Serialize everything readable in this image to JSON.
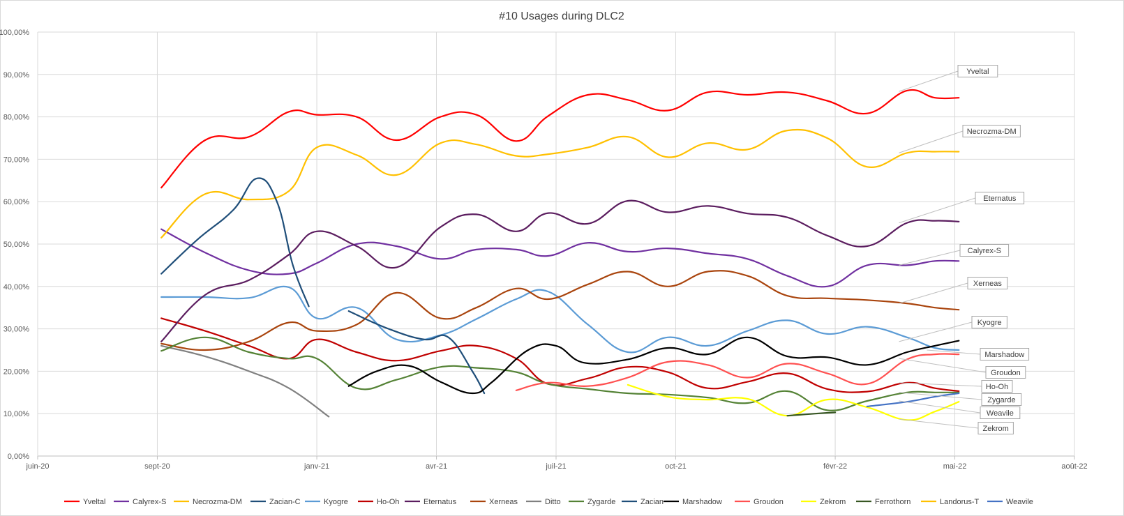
{
  "chart_data": {
    "type": "line",
    "title": "#10 Usages during DLC2",
    "xlabel": "",
    "ylabel": "",
    "ylim": [
      0,
      100
    ],
    "x_ticks": [
      "juin-20",
      "sept-20",
      "janv-21",
      "avr-21",
      "juil-21",
      "oct-21",
      "févr-22",
      "mai-22",
      "août-22"
    ],
    "x_tick_pos": [
      0,
      3,
      7,
      10,
      13,
      16,
      20,
      23,
      26
    ],
    "y_ticks": [
      "0,00%",
      "10,00%",
      "20,00%",
      "30,00%",
      "40,00%",
      "50,00%",
      "60,00%",
      "70,00%",
      "80,00%",
      "90,00%",
      "100,00%"
    ],
    "xlim": [
      0,
      26
    ],
    "grid": true,
    "legend_position": "bottom",
    "series": [
      {
        "name": "Yveltal",
        "color": "#ff0000",
        "x": [
          3.1,
          4.2,
          5.3,
          6.3,
          7.0,
          8.0,
          9.0,
          10.1,
          11.0,
          12.0,
          12.8,
          13.8,
          14.8,
          15.8,
          16.8,
          17.8,
          18.8,
          19.8,
          20.8,
          21.8,
          22.5,
          23.1
        ],
        "values": [
          63.3,
          74.5,
          75.3,
          81.2,
          80.5,
          80.0,
          74.5,
          80.0,
          80.5,
          74.3,
          80.2,
          85.2,
          84.0,
          81.5,
          85.8,
          85.2,
          85.8,
          83.8,
          80.8,
          86.2,
          84.5,
          84.5
        ]
      },
      {
        "name": "Calyrex-S",
        "color": "#7030a0",
        "x": [
          3.1,
          4.2,
          5.3,
          6.3,
          7.0,
          8.0,
          9.0,
          10.1,
          11.0,
          12.0,
          12.8,
          13.8,
          14.8,
          15.8,
          16.8,
          17.8,
          18.8,
          19.8,
          20.8,
          21.8,
          22.5,
          23.1
        ],
        "values": [
          53.5,
          48.0,
          43.8,
          43.0,
          45.5,
          50.0,
          49.5,
          46.5,
          48.7,
          48.7,
          47.2,
          50.3,
          48.2,
          49.0,
          47.8,
          46.5,
          42.5,
          40.0,
          45.0,
          45.0,
          46.0,
          46.0
        ]
      },
      {
        "name": "Necrozma-DM",
        "color": "#ffc000",
        "x": [
          3.1,
          4.2,
          5.3,
          6.3,
          7.0,
          8.0,
          9.0,
          10.1,
          11.0,
          12.0,
          12.8,
          13.8,
          14.8,
          15.8,
          16.8,
          17.8,
          18.8,
          19.8,
          20.8,
          21.8,
          22.5,
          23.1
        ],
        "values": [
          51.5,
          61.8,
          60.5,
          62.5,
          72.8,
          71.0,
          66.3,
          73.8,
          73.5,
          70.8,
          71.2,
          72.8,
          75.3,
          70.5,
          73.8,
          72.3,
          76.8,
          75.0,
          68.2,
          71.5,
          71.8,
          71.8
        ]
      },
      {
        "name": "Zacian-C",
        "color": "#1f4e79",
        "x": [
          3.1,
          4.0,
          4.9,
          5.5,
          6.0,
          6.4,
          6.8
        ],
        "values": [
          43.0,
          51.0,
          58.0,
          65.5,
          60.0,
          45.0,
          35.3
        ]
      },
      {
        "name": "Kyogre",
        "color": "#5b9bd5",
        "x": [
          3.1,
          4.2,
          5.3,
          6.3,
          7.0,
          8.0,
          9.0,
          10.1,
          11.0,
          12.0,
          12.8,
          13.8,
          14.8,
          15.8,
          16.8,
          17.8,
          18.8,
          19.8,
          20.8,
          21.8,
          22.5,
          23.1
        ],
        "values": [
          37.5,
          37.5,
          37.3,
          39.8,
          32.5,
          35.0,
          27.5,
          28.5,
          32.3,
          37.0,
          38.8,
          31.0,
          24.5,
          28.0,
          26.0,
          29.5,
          32.0,
          28.8,
          30.5,
          28.0,
          25.5,
          25.0
        ]
      },
      {
        "name": "Ho-Oh",
        "color": "#c00000",
        "x": [
          3.1,
          4.2,
          5.3,
          6.3,
          7.0,
          8.0,
          9.0,
          10.1,
          11.0,
          12.0,
          12.8,
          13.8,
          14.8,
          15.8,
          16.8,
          17.8,
          18.8,
          19.8,
          20.8,
          21.8,
          22.5,
          23.1
        ],
        "values": [
          32.5,
          29.5,
          26.0,
          23.0,
          27.5,
          24.5,
          22.5,
          24.8,
          26.0,
          23.0,
          17.0,
          18.3,
          21.0,
          19.8,
          16.0,
          17.5,
          19.5,
          15.8,
          15.2,
          17.3,
          16.0,
          15.3
        ]
      },
      {
        "name": "Eternatus",
        "color": "#5b1d5f",
        "x": [
          3.1,
          4.2,
          5.3,
          6.3,
          7.0,
          8.0,
          9.0,
          10.1,
          11.0,
          12.0,
          12.8,
          13.8,
          14.8,
          15.8,
          16.8,
          17.8,
          18.8,
          19.8,
          20.8,
          21.8,
          22.5,
          23.1
        ],
        "values": [
          27.0,
          38.0,
          41.5,
          47.5,
          53.0,
          49.5,
          44.5,
          54.0,
          57.0,
          53.0,
          57.3,
          54.8,
          60.2,
          57.5,
          59.0,
          57.2,
          56.3,
          52.0,
          49.5,
          55.0,
          55.5,
          55.3
        ]
      },
      {
        "name": "Xerneas",
        "color": "#a9440d",
        "x": [
          3.1,
          4.2,
          5.3,
          6.3,
          7.0,
          8.0,
          9.0,
          10.1,
          11.0,
          12.0,
          12.8,
          13.8,
          14.8,
          15.8,
          16.8,
          17.8,
          18.8,
          19.8,
          20.8,
          21.8,
          22.5,
          23.1
        ],
        "values": [
          26.5,
          25.0,
          27.0,
          31.5,
          29.5,
          31.0,
          38.5,
          32.5,
          35.0,
          39.5,
          37.0,
          40.5,
          43.5,
          40.0,
          43.5,
          42.5,
          37.8,
          37.2,
          36.8,
          36.0,
          35.0,
          34.5
        ]
      },
      {
        "name": "Ditto",
        "color": "#808080",
        "x": [
          3.1,
          4.2,
          5.3,
          6.3,
          7.3
        ],
        "values": [
          26.0,
          23.5,
          20.0,
          16.0,
          9.3
        ]
      },
      {
        "name": "Zygarde",
        "color": "#548235",
        "x": [
          3.1,
          4.2,
          5.3,
          6.3,
          7.0,
          8.0,
          9.0,
          10.1,
          11.0,
          12.0,
          12.8,
          13.8,
          14.8,
          15.8,
          16.8,
          17.8,
          18.8,
          19.8,
          20.8,
          21.8,
          22.5,
          23.1
        ],
        "values": [
          24.8,
          28.0,
          24.5,
          23.0,
          23.0,
          16.0,
          18.0,
          21.0,
          20.8,
          19.8,
          17.0,
          15.8,
          14.8,
          14.5,
          13.8,
          12.5,
          15.3,
          10.8,
          13.0,
          15.0,
          15.0,
          15.0
        ]
      },
      {
        "name": "Zacian",
        "color": "#1f4e79",
        "x": [
          7.8,
          8.8,
          9.7,
          10.3,
          10.9,
          11.2
        ],
        "values": [
          34.2,
          30.0,
          27.5,
          28.0,
          20.0,
          14.8
        ]
      },
      {
        "name": "Marshadow",
        "color": "#000000",
        "x": [
          7.8,
          8.5,
          9.3,
          10.1,
          10.9,
          11.4,
          12.3,
          13.0,
          13.7,
          14.8,
          15.8,
          16.8,
          17.8,
          18.8,
          19.8,
          20.8,
          21.8,
          22.5,
          23.1
        ],
        "values": [
          16.5,
          20.0,
          21.3,
          17.5,
          14.8,
          17.5,
          25.0,
          26.0,
          22.0,
          22.8,
          25.5,
          24.0,
          28.0,
          23.5,
          23.3,
          21.5,
          24.5,
          26.0,
          27.2
        ]
      },
      {
        "name": "Groudon",
        "color": "#ff5050",
        "x": [
          12.0,
          12.8,
          13.8,
          14.8,
          15.8,
          16.8,
          17.8,
          18.8,
          19.8,
          20.8,
          21.8,
          22.5,
          23.1
        ],
        "values": [
          15.5,
          17.3,
          16.5,
          18.5,
          22.2,
          21.5,
          18.5,
          21.8,
          19.5,
          17.0,
          22.8,
          24.0,
          24.0
        ]
      },
      {
        "name": "Zekrom",
        "color": "#ffff00",
        "x": [
          14.8,
          15.8,
          16.8,
          17.8,
          18.8,
          19.8,
          20.8,
          21.8,
          22.5,
          23.1
        ],
        "values": [
          16.8,
          14.0,
          13.3,
          13.5,
          9.5,
          13.3,
          11.5,
          8.5,
          10.5,
          12.8
        ]
      },
      {
        "name": "Ferrothorn",
        "color": "#375623",
        "x": [
          18.8,
          19.5,
          20.0
        ],
        "values": [
          9.5,
          10.0,
          10.3
        ]
      },
      {
        "name": "Landorus-T",
        "color": "#ffc000",
        "x": [],
        "values": []
      },
      {
        "name": "Weavile",
        "color": "#4472c4",
        "x": [
          20.8,
          21.8,
          22.5,
          23.1
        ],
        "values": [
          11.7,
          12.8,
          14.0,
          14.8
        ]
      }
    ],
    "annotations": [
      {
        "label": "Yveltal",
        "target_x": 21.6,
        "target_y": 86.0
      },
      {
        "label": "Necrozma-DM",
        "target_x": 21.6,
        "target_y": 71.5
      },
      {
        "label": "Eternatus",
        "target_x": 21.6,
        "target_y": 55.0
      },
      {
        "label": "Calyrex-S",
        "target_x": 21.6,
        "target_y": 45.0
      },
      {
        "label": "Xerneas",
        "target_x": 21.6,
        "target_y": 36.0
      },
      {
        "label": "Kyogre",
        "target_x": 21.6,
        "target_y": 27.0
      },
      {
        "label": "Marshadow",
        "target_x": 22.3,
        "target_y": 25.0
      },
      {
        "label": "Groudon",
        "target_x": 21.6,
        "target_y": 23.0
      },
      {
        "label": "Ho-Oh",
        "target_x": 21.6,
        "target_y": 17.3
      },
      {
        "label": "Zygarde",
        "target_x": 21.6,
        "target_y": 15.0
      },
      {
        "label": "Weavile",
        "target_x": 21.6,
        "target_y": 13.0
      },
      {
        "label": "Zekrom",
        "target_x": 21.6,
        "target_y": 8.7
      }
    ]
  }
}
